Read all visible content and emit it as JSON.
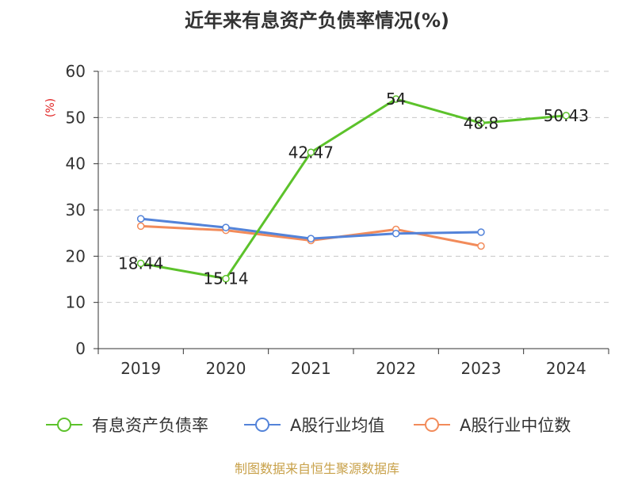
{
  "title": "近年来有息资产负债率情况(%)",
  "unit_label": "(%)",
  "source": "制图数据来自恒生聚源数据库",
  "chart_data": {
    "type": "line",
    "categories": [
      "2019",
      "2020",
      "2021",
      "2022",
      "2023",
      "2024"
    ],
    "ylim": [
      0,
      60
    ],
    "yticks": [
      0,
      10,
      20,
      30,
      40,
      50,
      60
    ],
    "grid": true,
    "legend_position": "bottom",
    "series": [
      {
        "name": "有息资产负债率",
        "color": "#5cc22b",
        "values": [
          18.44,
          15.14,
          42.47,
          54,
          48.8,
          50.43
        ],
        "labels": [
          "18.44",
          "15.14",
          "42.47",
          "54",
          "48.8",
          "50.43"
        ]
      },
      {
        "name": "A股行业均值",
        "color": "#5383d9",
        "values": [
          28.1,
          26.2,
          23.8,
          24.9,
          25.2,
          null
        ]
      },
      {
        "name": "A股行业中位数",
        "color": "#f28b5a",
        "values": [
          26.5,
          25.6,
          23.4,
          25.8,
          22.2,
          null
        ]
      }
    ]
  }
}
